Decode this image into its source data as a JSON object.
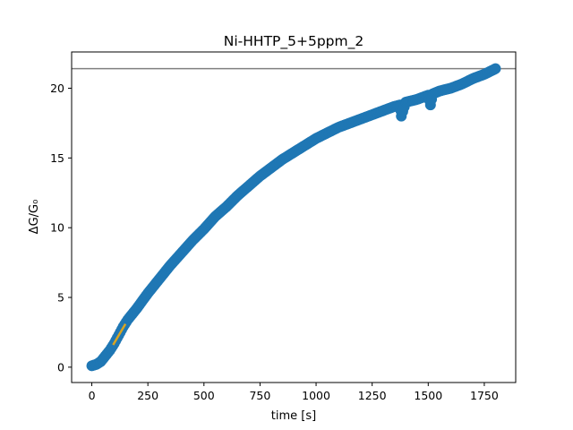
{
  "chart_data": {
    "type": "scatter",
    "title": "Ni-HHTP_5+5ppm_2",
    "xlabel": "time [s]",
    "ylabel": "ΔG/G₀",
    "xlim": [
      -90,
      1890
    ],
    "ylim": [
      -1.1,
      22.6
    ],
    "x_ticks": [
      0,
      250,
      500,
      750,
      1000,
      1250,
      1500,
      1750
    ],
    "y_ticks": [
      0,
      5,
      10,
      15,
      20
    ],
    "grid": false,
    "colors": {
      "points": "#1f77b4",
      "fit_line": "#daa520",
      "hline": "#808080"
    },
    "hline": {
      "y": 21.4
    },
    "fit_line": {
      "x": [
        95,
        150
      ],
      "y": [
        1.6,
        3.1
      ]
    },
    "series": [
      {
        "x": [
          0,
          20,
          40,
          60,
          80,
          100,
          120,
          140,
          160,
          180,
          200,
          250,
          300,
          350,
          400,
          450,
          500,
          550,
          600,
          650,
          700,
          750,
          800,
          850,
          900,
          950,
          1000,
          1050,
          1100,
          1150,
          1200,
          1250,
          1300,
          1350,
          1375,
          1380,
          1400,
          1450,
          1500,
          1510,
          1520,
          1550,
          1600,
          1650,
          1700,
          1750,
          1800
        ],
        "y": [
          0.1,
          0.2,
          0.4,
          0.8,
          1.2,
          1.7,
          2.3,
          2.9,
          3.4,
          3.8,
          4.2,
          5.3,
          6.3,
          7.3,
          8.2,
          9.1,
          9.9,
          10.8,
          11.5,
          12.3,
          13.0,
          13.7,
          14.3,
          14.9,
          15.4,
          15.9,
          16.4,
          16.8,
          17.2,
          17.5,
          17.8,
          18.1,
          18.4,
          18.7,
          18.8,
          18.0,
          19.0,
          19.2,
          19.5,
          18.8,
          19.6,
          19.8,
          20.0,
          20.3,
          20.7,
          21.0,
          21.4
        ]
      }
    ]
  }
}
